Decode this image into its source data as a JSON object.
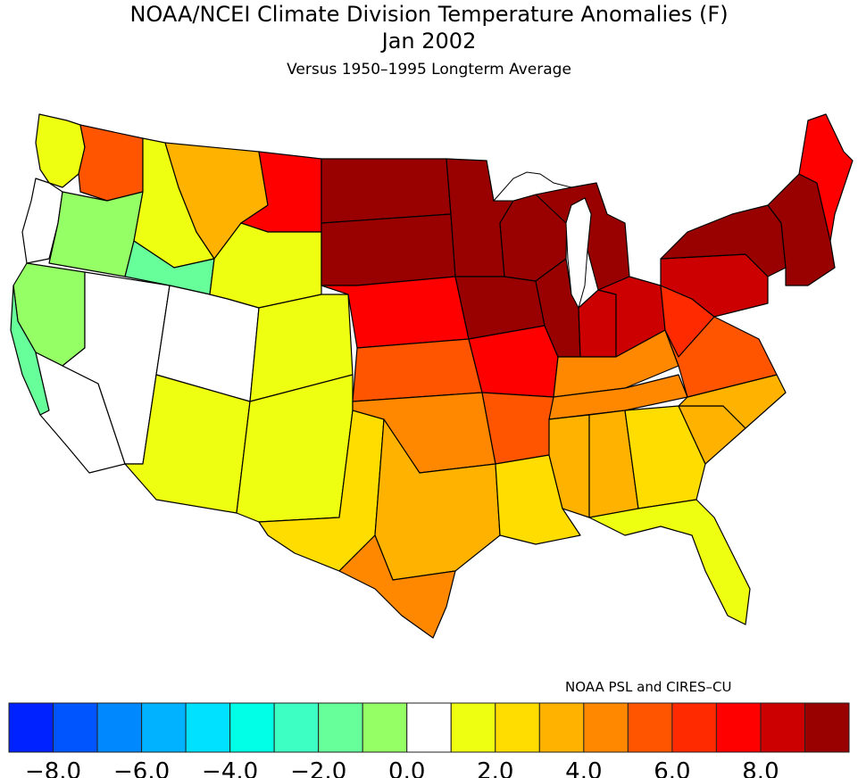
{
  "header": {
    "title": "NOAA/NCEI Climate Division Temperature Anomalies (F)",
    "period": "Jan 2002",
    "subtitle": "Versus 1950–1995 Longterm Average"
  },
  "credit": "NOAA PSL and CIRES–CU",
  "chart_data": {
    "type": "heatmap",
    "title": "NOAA/NCEI Climate Division Temperature Anomalies (F)",
    "subtitle": "Versus 1950–1995 Longterm Average",
    "period": "Jan 2002",
    "units": "F",
    "legend": {
      "placement": "bottom",
      "bins": [
        {
          "min": -9,
          "max": -8,
          "color": "#0022ff"
        },
        {
          "min": -8,
          "max": -7,
          "color": "#0055ff"
        },
        {
          "min": -7,
          "max": -6,
          "color": "#0088ff"
        },
        {
          "min": -6,
          "max": -5,
          "color": "#00b2ff"
        },
        {
          "min": -5,
          "max": -4,
          "color": "#00e0ff"
        },
        {
          "min": -4,
          "max": -3,
          "color": "#00ffe6"
        },
        {
          "min": -3,
          "max": -2,
          "color": "#3dffc4"
        },
        {
          "min": -2,
          "max": -1,
          "color": "#66ff99"
        },
        {
          "min": -1,
          "max": 0,
          "color": "#95ff66"
        },
        {
          "min": 0,
          "max": 1,
          "color": "#ffffff"
        },
        {
          "min": 1,
          "max": 2,
          "color": "#eeff11"
        },
        {
          "min": 2,
          "max": 3,
          "color": "#ffdd00"
        },
        {
          "min": 3,
          "max": 4,
          "color": "#ffb300"
        },
        {
          "min": 4,
          "max": 5,
          "color": "#ff8800"
        },
        {
          "min": 5,
          "max": 6,
          "color": "#ff5500"
        },
        {
          "min": 6,
          "max": 7,
          "color": "#ff2a00"
        },
        {
          "min": 7,
          "max": 8,
          "color": "#ff0000"
        },
        {
          "min": 8,
          "max": 9,
          "color": "#cc0000"
        },
        {
          "min": 9,
          "max": 10,
          "color": "#990000"
        }
      ],
      "tick_labels": [
        "−8.0",
        "−6.0",
        "−4.0",
        "−2.0",
        "0.0",
        "2.0",
        "4.0",
        "6.0",
        "8.0"
      ]
    },
    "regions": [
      {
        "name": "Washington coast",
        "value": 1.5
      },
      {
        "name": "Washington east",
        "value": 5.5
      },
      {
        "name": "Oregon coast",
        "value": 0.5
      },
      {
        "name": "Oregon interior",
        "value": -0.5
      },
      {
        "name": "California north",
        "value": -0.5
      },
      {
        "name": "California central coast",
        "value": -1.5
      },
      {
        "name": "California south",
        "value": 0.5
      },
      {
        "name": "Nevada",
        "value": 0.5
      },
      {
        "name": "Idaho north",
        "value": 1.5
      },
      {
        "name": "Idaho south",
        "value": -1.5
      },
      {
        "name": "Utah",
        "value": 0.5
      },
      {
        "name": "Arizona",
        "value": 1.5
      },
      {
        "name": "Montana west",
        "value": 3.5
      },
      {
        "name": "Montana east",
        "value": 7.5
      },
      {
        "name": "Wyoming",
        "value": 1.5
      },
      {
        "name": "Colorado",
        "value": 1.5
      },
      {
        "name": "New Mexico",
        "value": 1.5
      },
      {
        "name": "North Dakota",
        "value": 9.5
      },
      {
        "name": "South Dakota",
        "value": 9.5
      },
      {
        "name": "Nebraska",
        "value": 7.5
      },
      {
        "name": "Kansas",
        "value": 5.5
      },
      {
        "name": "Oklahoma",
        "value": 4.5
      },
      {
        "name": "Texas west",
        "value": 2.5
      },
      {
        "name": "Texas central",
        "value": 3.5
      },
      {
        "name": "Texas south",
        "value": 4.5
      },
      {
        "name": "Minnesota",
        "value": 9.5
      },
      {
        "name": "Iowa",
        "value": 9.5
      },
      {
        "name": "Missouri",
        "value": 7.5
      },
      {
        "name": "Arkansas",
        "value": 5.5
      },
      {
        "name": "Louisiana",
        "value": 2.5
      },
      {
        "name": "Wisconsin",
        "value": 9.5
      },
      {
        "name": "Michigan",
        "value": 9.5
      },
      {
        "name": "Illinois",
        "value": 9.5
      },
      {
        "name": "Indiana",
        "value": 8.5
      },
      {
        "name": "Ohio",
        "value": 8.5
      },
      {
        "name": "Kentucky",
        "value": 4.5
      },
      {
        "name": "Tennessee",
        "value": 4.5
      },
      {
        "name": "Mississippi",
        "value": 3.5
      },
      {
        "name": "Alabama",
        "value": 3.5
      },
      {
        "name": "Georgia",
        "value": 2.5
      },
      {
        "name": "Florida",
        "value": 1.5
      },
      {
        "name": "South Carolina",
        "value": 3.5
      },
      {
        "name": "North Carolina",
        "value": 3.5
      },
      {
        "name": "Virginia",
        "value": 5.5
      },
      {
        "name": "West Virginia",
        "value": 6.5
      },
      {
        "name": "Pennsylvania",
        "value": 8.5
      },
      {
        "name": "New York",
        "value": 9.5
      },
      {
        "name": "New England",
        "value": 9.5
      },
      {
        "name": "Maine",
        "value": 7.5
      }
    ]
  }
}
